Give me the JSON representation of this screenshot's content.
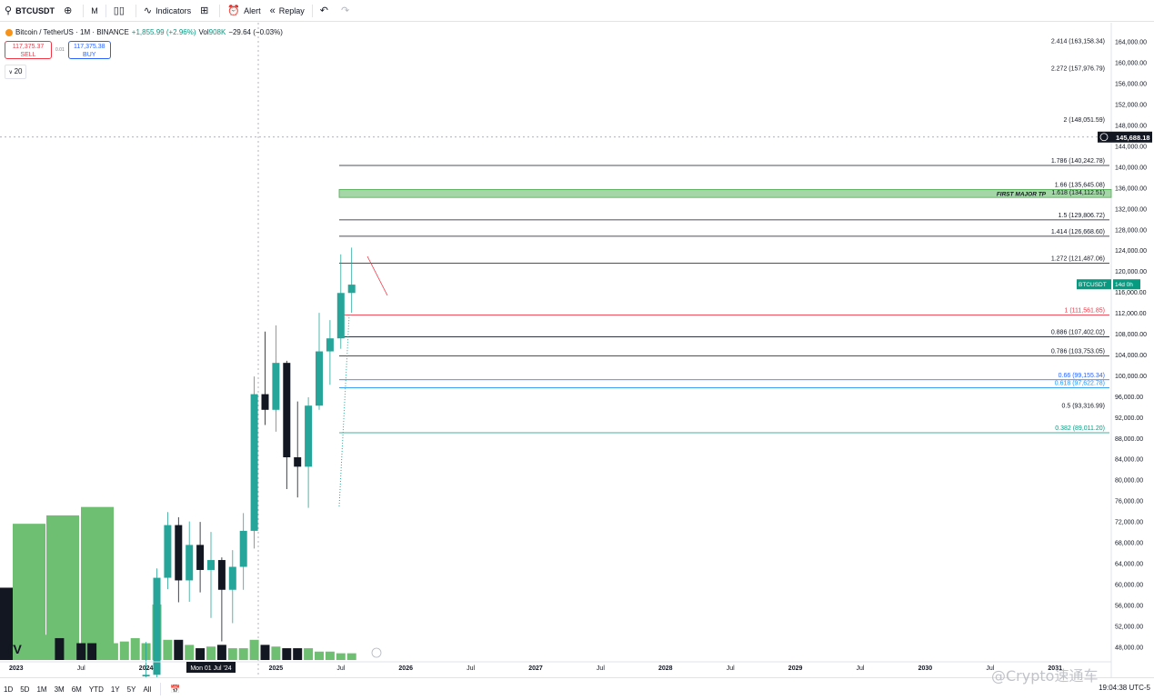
{
  "toolbar": {
    "symbol": "BTCUSDT",
    "interval": "M",
    "indicators_label": "Indicators",
    "alert_label": "Alert",
    "replay_label": "Replay"
  },
  "legend": {
    "title": "Bitcoin / TetherUS · 1M · BINANCE",
    "change": "+1,855.99 (+2.96%)",
    "vol_label": "Vol",
    "vol_value": "908K",
    "vol_change": "−29.64 (−0.03%)"
  },
  "trade": {
    "sell_price": "117,375.37",
    "sell_label": "SELL",
    "spread": "0.01",
    "buy_price": "117,375.38",
    "buy_label": "BUY"
  },
  "count_badge": "20",
  "timeframes": [
    "1D",
    "5D",
    "1M",
    "3M",
    "6M",
    "YTD",
    "1Y",
    "5Y",
    "All"
  ],
  "clock": "19:04:38 UTC-5",
  "watermark": "@Crypto速通车",
  "chart_data": {
    "type": "candlestick",
    "y_axis": {
      "min": 46000,
      "max": 166000,
      "ticks": [
        164000,
        160000,
        156000,
        152000,
        148000,
        144000,
        140000,
        136000,
        132000,
        128000,
        124000,
        120000,
        116000,
        112000,
        108000,
        104000,
        100000,
        96000,
        92000,
        88000,
        84000,
        80000,
        76000,
        72000,
        68000,
        64000,
        60000,
        56000,
        52000,
        48000
      ]
    },
    "x_axis_labels": [
      {
        "label": "2023",
        "month": 0
      },
      {
        "label": "Jul",
        "month": 6
      },
      {
        "label": "2024",
        "month": 12
      },
      {
        "label": "Mon 01 Jul '24",
        "month": 18,
        "crosshair": true
      },
      {
        "label": "2025",
        "month": 24
      },
      {
        "label": "Jul",
        "month": 30
      },
      {
        "label": "2026",
        "month": 36
      },
      {
        "label": "Jul",
        "month": 42
      },
      {
        "label": "2027",
        "month": 48
      },
      {
        "label": "Jul",
        "month": 54
      },
      {
        "label": "2028",
        "month": 60
      },
      {
        "label": "Jul",
        "month": 66
      },
      {
        "label": "2029",
        "month": 72
      },
      {
        "label": "Jul",
        "month": 78
      },
      {
        "label": "2030",
        "month": 84
      },
      {
        "label": "Jul",
        "month": 90
      },
      {
        "label": "2031",
        "month": 96
      }
    ],
    "visible_start_month": -1,
    "last_price": {
      "symbol": "BTCUSDT",
      "countdown": "14d 0h",
      "value": 117375
    },
    "crosshair_price": "145,688.18",
    "candles": [
      {
        "m": 12,
        "o": 42300,
        "h": 48900,
        "l": 38500,
        "c": 42600
      },
      {
        "m": 13,
        "o": 42600,
        "h": 63000,
        "l": 41900,
        "c": 61200
      },
      {
        "m": 14,
        "o": 61200,
        "h": 73800,
        "l": 59000,
        "c": 71300
      },
      {
        "m": 15,
        "o": 71300,
        "h": 72800,
        "l": 56500,
        "c": 60700
      },
      {
        "m": 16,
        "o": 60700,
        "h": 72000,
        "l": 56600,
        "c": 67500
      },
      {
        "m": 17,
        "o": 67500,
        "h": 71900,
        "l": 58400,
        "c": 62700
      },
      {
        "m": 18,
        "o": 62700,
        "h": 70000,
        "l": 53500,
        "c": 64600
      },
      {
        "m": 19,
        "o": 64600,
        "h": 65100,
        "l": 49000,
        "c": 58900
      },
      {
        "m": 20,
        "o": 58900,
        "h": 66500,
        "l": 52500,
        "c": 63300
      },
      {
        "m": 21,
        "o": 63300,
        "h": 73600,
        "l": 58900,
        "c": 70200
      },
      {
        "m": 22,
        "o": 70200,
        "h": 99800,
        "l": 66800,
        "c": 96400
      },
      {
        "m": 23,
        "o": 96400,
        "h": 108400,
        "l": 90500,
        "c": 93400
      },
      {
        "m": 24,
        "o": 93400,
        "h": 109600,
        "l": 89200,
        "c": 102400
      },
      {
        "m": 25,
        "o": 102400,
        "h": 102800,
        "l": 78200,
        "c": 84300
      },
      {
        "m": 26,
        "o": 84300,
        "h": 95000,
        "l": 76600,
        "c": 82500
      },
      {
        "m": 27,
        "o": 82500,
        "h": 95800,
        "l": 74600,
        "c": 94200
      },
      {
        "m": 28,
        "o": 94200,
        "h": 112000,
        "l": 93400,
        "c": 104600
      },
      {
        "m": 29,
        "o": 104600,
        "h": 110600,
        "l": 98200,
        "c": 107100
      },
      {
        "m": 30,
        "o": 107100,
        "h": 123200,
        "l": 105100,
        "c": 115800
      },
      {
        "m": 31,
        "o": 115800,
        "h": 124500,
        "l": 112000,
        "c": 117400
      }
    ],
    "volumes": [
      {
        "m": -1,
        "v": 0.43,
        "dir": "down"
      },
      {
        "m": 0,
        "v": 0.81,
        "dir": "up"
      },
      {
        "m": 1,
        "v": 0.86,
        "dir": "up"
      },
      {
        "m": 2,
        "v": 0.91,
        "dir": "up"
      },
      {
        "m": 3,
        "v": 0.15,
        "dir": "up"
      },
      {
        "m": 4,
        "v": 0.13,
        "dir": "down"
      },
      {
        "m": 5,
        "v": 0.12,
        "dir": "up"
      },
      {
        "m": 6,
        "v": 0.1,
        "dir": "down"
      },
      {
        "m": 7,
        "v": 0.1,
        "dir": "down"
      },
      {
        "m": 8,
        "v": 0.11,
        "dir": "up"
      },
      {
        "m": 9,
        "v": 0.1,
        "dir": "up"
      },
      {
        "m": 10,
        "v": 0.11,
        "dir": "up"
      },
      {
        "m": 11,
        "v": 0.13,
        "dir": "up"
      },
      {
        "m": 12,
        "v": 0.1,
        "dir": "up"
      },
      {
        "m": 13,
        "v": 0.33,
        "dir": "up"
      },
      {
        "m": 14,
        "v": 0.12,
        "dir": "up"
      },
      {
        "m": 15,
        "v": 0.12,
        "dir": "down"
      },
      {
        "m": 16,
        "v": 0.09,
        "dir": "up"
      },
      {
        "m": 17,
        "v": 0.07,
        "dir": "down"
      },
      {
        "m": 18,
        "v": 0.08,
        "dir": "up"
      },
      {
        "m": 19,
        "v": 0.09,
        "dir": "down"
      },
      {
        "m": 20,
        "v": 0.07,
        "dir": "up"
      },
      {
        "m": 21,
        "v": 0.07,
        "dir": "up"
      },
      {
        "m": 22,
        "v": 0.12,
        "dir": "up"
      },
      {
        "m": 23,
        "v": 0.09,
        "dir": "down"
      },
      {
        "m": 24,
        "v": 0.08,
        "dir": "up"
      },
      {
        "m": 25,
        "v": 0.07,
        "dir": "down"
      },
      {
        "m": 26,
        "v": 0.07,
        "dir": "down"
      },
      {
        "m": 27,
        "v": 0.07,
        "dir": "up"
      },
      {
        "m": 28,
        "v": 0.05,
        "dir": "up"
      },
      {
        "m": 29,
        "v": 0.05,
        "dir": "up"
      },
      {
        "m": 30,
        "v": 0.04,
        "dir": "up"
      },
      {
        "m": 31,
        "v": 0.04,
        "dir": "up"
      }
    ],
    "fib_levels": [
      {
        "ratio": "2.414",
        "label": "2.414 (163,158.34)",
        "price": 163158.34,
        "color": "#131722",
        "line": false
      },
      {
        "ratio": "2.272",
        "label": "2.272 (157,976.79)",
        "price": 157976.79,
        "color": "#131722",
        "line": false
      },
      {
        "ratio": "2",
        "label": "2 (148,051.59)",
        "price": 148051.59,
        "color": "#131722",
        "line": false
      },
      {
        "ratio": "1.786",
        "label": "1.786 (140,242.78)",
        "price": 140242.78,
        "color": "#131722",
        "line": true
      },
      {
        "ratio": "1.66",
        "label": "1.66 (135,645.08)",
        "price": 135645.08,
        "color": "#131722",
        "line": false
      },
      {
        "ratio": "1.618",
        "label": "1.618 (134,112.51)",
        "price": 134112.51,
        "color": "#131722",
        "line": false
      },
      {
        "ratio": "1.5",
        "label": "1.5 (129,806.72)",
        "price": 129806.72,
        "color": "#131722",
        "line": true
      },
      {
        "ratio": "1.414",
        "label": "1.414 (126,668.60)",
        "price": 126668.6,
        "color": "#131722",
        "line": true
      },
      {
        "ratio": "1.272",
        "label": "1.272 (121,487.06)",
        "price": 121487.06,
        "color": "#131722",
        "line": true
      },
      {
        "ratio": "1",
        "label": "1 (111,561.85)",
        "price": 111561.85,
        "color": "#f23645",
        "line": true
      },
      {
        "ratio": "0.886",
        "label": "0.886 (107,402.02)",
        "price": 107402.02,
        "color": "#131722",
        "line": true
      },
      {
        "ratio": "0.786",
        "label": "0.786 (103,753.05)",
        "price": 103753.05,
        "color": "#131722",
        "line": true
      },
      {
        "ratio": "0.66",
        "label": "0.66 (99,155.34)",
        "price": 99155.34,
        "color": "#2962ff",
        "line": true
      },
      {
        "ratio": "0.618",
        "label": "0.618 (97,622.78)",
        "price": 97622.78,
        "color": "#2196f3",
        "line": true
      },
      {
        "ratio": "0.5",
        "label": "0.5 (93,316.99)",
        "price": 93316.99,
        "color": "#131722",
        "line": false
      },
      {
        "ratio": "0.382",
        "label": "0.382 (89,011.20)",
        "price": 89011.2,
        "color": "#089981",
        "line": true
      }
    ],
    "target_zone": {
      "label": "FIRST MAJOR TP",
      "from": 134112.51,
      "to": 135645.08,
      "color": "#81c784"
    }
  }
}
